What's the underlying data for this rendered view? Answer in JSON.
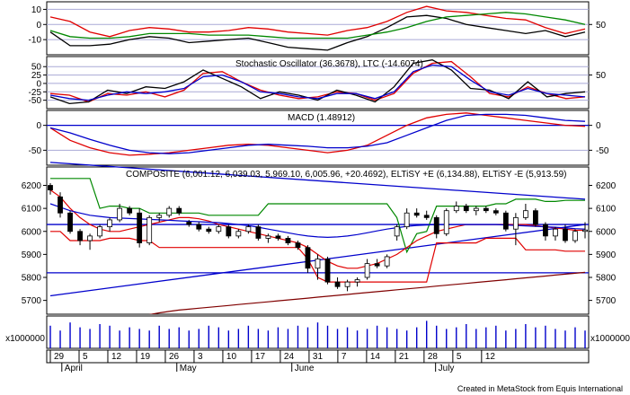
{
  "credit": "Created in MetaStock from Equis International",
  "colors": {
    "frame": "#000000",
    "grid": "#a9a9d6",
    "blue": "#0000cc",
    "red": "#e00000",
    "green": "#008800",
    "darkred": "#800000",
    "black": "#000000",
    "volume": "#0000cc"
  },
  "time_axis": {
    "month_labels": [
      "April",
      "May",
      "June",
      "July"
    ],
    "day_labels": [
      "29",
      "5",
      "12",
      "19",
      "26",
      "3",
      "10",
      "17",
      "24",
      "31",
      "7",
      "14",
      "21",
      "28",
      "5",
      "12"
    ]
  },
  "chart_data": [
    {
      "type": "line",
      "name": "top-oscillator",
      "ylim": [
        -20,
        15
      ],
      "tick_labels_left": [
        "10",
        "0",
        "-10"
      ],
      "tick_labels_right": [
        "50"
      ],
      "series": [
        {
          "color": "red",
          "values": [
            5,
            2,
            -5,
            -8,
            -4,
            -2,
            -3,
            -5,
            -5,
            -4,
            -2,
            -3,
            -5,
            -6,
            -7,
            -4,
            -2,
            2,
            8,
            12,
            9,
            8,
            6,
            4,
            3,
            -2,
            -6,
            -3
          ]
        },
        {
          "color": "black",
          "values": [
            -5,
            -14,
            -14,
            -13,
            -10,
            -8,
            -9,
            -12,
            -11,
            -10,
            -9,
            -12,
            -15,
            -16,
            -17,
            -12,
            -8,
            -2,
            5,
            6,
            4,
            0,
            -2,
            -4,
            -6,
            -4,
            -8,
            -5
          ]
        },
        {
          "color": "green",
          "values": [
            -4,
            -8,
            -9,
            -9,
            -8,
            -6,
            -6,
            -6,
            -7,
            -7,
            -7,
            -8,
            -9,
            -9,
            -9,
            -9,
            -7,
            -5,
            -2,
            2,
            5,
            6,
            7,
            8,
            7,
            5,
            3,
            0
          ]
        }
      ]
    },
    {
      "type": "line",
      "name": "stochastic",
      "title": "Stochastic Oscillator (36.3678), LTC (-14.6074)",
      "ylim": [
        -75,
        80
      ],
      "tick_labels_left": [
        "50",
        "25",
        "0",
        "-25",
        "-50"
      ],
      "tick_labels_right": [
        "50"
      ],
      "series": [
        {
          "color": "red",
          "values": [
            -30,
            -35,
            -55,
            -30,
            -35,
            -25,
            -40,
            -20,
            30,
            35,
            5,
            -20,
            -35,
            -45,
            -40,
            -25,
            -30,
            -50,
            -30,
            30,
            60,
            65,
            20,
            -30,
            -40,
            -10,
            -30,
            -45,
            -40
          ]
        },
        {
          "color": "black",
          "values": [
            -40,
            -60,
            -55,
            -20,
            -30,
            -10,
            -15,
            5,
            40,
            15,
            -10,
            -45,
            -25,
            -35,
            -50,
            -20,
            -35,
            -55,
            -10,
            60,
            70,
            40,
            -15,
            -20,
            -45,
            5,
            -40,
            -30,
            -25
          ]
        },
        {
          "color": "blue",
          "values": [
            -35,
            -45,
            -50,
            -35,
            -25,
            -30,
            -25,
            -15,
            20,
            25,
            5,
            -25,
            -30,
            -40,
            -45,
            -30,
            -30,
            -45,
            -25,
            35,
            55,
            50,
            10,
            -25,
            -35,
            -15,
            -30,
            -35,
            -40
          ]
        }
      ]
    },
    {
      "type": "line",
      "name": "macd",
      "title": "MACD (1.48912)",
      "ylim": [
        -80,
        30
      ],
      "tick_labels_left": [
        "0",
        "-50"
      ],
      "tick_labels_right": [
        "0",
        "-50"
      ],
      "series": [
        {
          "color": "red",
          "values": [
            -5,
            -30,
            -45,
            -55,
            -60,
            -58,
            -55,
            -50,
            -45,
            -40,
            -38,
            -40,
            -45,
            -50,
            -55,
            -50,
            -40,
            -20,
            0,
            15,
            22,
            25,
            20,
            15,
            10,
            5,
            0,
            -2
          ]
        },
        {
          "color": "blue",
          "values": [
            -5,
            -15,
            -28,
            -40,
            -50,
            -55,
            -57,
            -55,
            -50,
            -45,
            -40,
            -38,
            -40,
            -42,
            -45,
            -45,
            -42,
            -35,
            -20,
            -5,
            10,
            20,
            22,
            22,
            20,
            15,
            10,
            8
          ]
        }
      ]
    },
    {
      "type": "line",
      "name": "composite",
      "title": "COMPOSITE (6,001.12, 6,039.03, 5,969.10, 6,005.96, +20.4692), ELTiSY +E (6,134.88), ELTiSY -E (5,913.59)",
      "ylim": [
        5640,
        6280
      ],
      "tick_labels_left": [
        "6200",
        "6100",
        "6000",
        "5900",
        "5800",
        "5700"
      ],
      "tick_labels_right": [
        "6200",
        "6100",
        "6000",
        "5900",
        "5800",
        "5700"
      ],
      "candles": [
        {
          "o": 6200,
          "h": 6210,
          "l": 6160,
          "c": 6180
        },
        {
          "o": 6150,
          "h": 6170,
          "l": 6060,
          "c": 6080
        },
        {
          "o": 6080,
          "h": 6090,
          "l": 5990,
          "c": 6000
        },
        {
          "o": 6000,
          "h": 6010,
          "l": 5940,
          "c": 5960
        },
        {
          "o": 5960,
          "h": 5990,
          "l": 5920,
          "c": 5980
        },
        {
          "o": 5980,
          "h": 6030,
          "l": 5970,
          "c": 6020
        },
        {
          "o": 6020,
          "h": 6060,
          "l": 6000,
          "c": 6050
        },
        {
          "o": 6050,
          "h": 6120,
          "l": 6040,
          "c": 6100
        },
        {
          "o": 6100,
          "h": 6110,
          "l": 6070,
          "c": 6080
        },
        {
          "o": 6080,
          "h": 6100,
          "l": 5930,
          "c": 5950
        },
        {
          "o": 5950,
          "h": 6070,
          "l": 5940,
          "c": 6060
        },
        {
          "o": 6060,
          "h": 6080,
          "l": 6040,
          "c": 6070
        },
        {
          "o": 6070,
          "h": 6110,
          "l": 6060,
          "c": 6100
        },
        {
          "o": 6100,
          "h": 6110,
          "l": 6070,
          "c": 6080
        },
        {
          "o": 6040,
          "h": 6050,
          "l": 6020,
          "c": 6030
        },
        {
          "o": 6030,
          "h": 6040,
          "l": 6000,
          "c": 6010
        },
        {
          "o": 6010,
          "h": 6020,
          "l": 5990,
          "c": 6000
        },
        {
          "o": 6000,
          "h": 6030,
          "l": 5990,
          "c": 6020
        },
        {
          "o": 6020,
          "h": 6030,
          "l": 5970,
          "c": 5980
        },
        {
          "o": 5980,
          "h": 6010,
          "l": 5970,
          "c": 6000
        },
        {
          "o": 6000,
          "h": 6030,
          "l": 5990,
          "c": 6020
        },
        {
          "o": 6020,
          "h": 6030,
          "l": 5960,
          "c": 5970
        },
        {
          "o": 5970,
          "h": 5990,
          "l": 5950,
          "c": 5980
        },
        {
          "o": 5980,
          "h": 5990,
          "l": 5960,
          "c": 5970
        },
        {
          "o": 5970,
          "h": 5980,
          "l": 5940,
          "c": 5950
        },
        {
          "o": 5950,
          "h": 5960,
          "l": 5920,
          "c": 5930
        },
        {
          "o": 5930,
          "h": 5940,
          "l": 5820,
          "c": 5840
        },
        {
          "o": 5840,
          "h": 5900,
          "l": 5790,
          "c": 5880
        },
        {
          "o": 5880,
          "h": 5890,
          "l": 5770,
          "c": 5780
        },
        {
          "o": 5780,
          "h": 5800,
          "l": 5750,
          "c": 5760
        },
        {
          "o": 5760,
          "h": 5790,
          "l": 5740,
          "c": 5780
        },
        {
          "o": 5780,
          "h": 5800,
          "l": 5760,
          "c": 5790
        },
        {
          "o": 5800,
          "h": 5880,
          "l": 5790,
          "c": 5860
        },
        {
          "o": 5860,
          "h": 5880,
          "l": 5840,
          "c": 5850
        },
        {
          "o": 5850,
          "h": 5900,
          "l": 5840,
          "c": 5890
        },
        {
          "o": 5980,
          "h": 6030,
          "l": 5960,
          "c": 6020
        },
        {
          "o": 6020,
          "h": 6100,
          "l": 6010,
          "c": 6080
        },
        {
          "o": 6080,
          "h": 6100,
          "l": 6060,
          "c": 6070
        },
        {
          "o": 6070,
          "h": 6090,
          "l": 6050,
          "c": 6060
        },
        {
          "o": 6060,
          "h": 6070,
          "l": 5970,
          "c": 5990
        },
        {
          "o": 5990,
          "h": 6100,
          "l": 5980,
          "c": 6090
        },
        {
          "o": 6090,
          "h": 6130,
          "l": 6080,
          "c": 6110
        },
        {
          "o": 6110,
          "h": 6120,
          "l": 6080,
          "c": 6090
        },
        {
          "o": 6090,
          "h": 6110,
          "l": 6070,
          "c": 6100
        },
        {
          "o": 6100,
          "h": 6110,
          "l": 6080,
          "c": 6090
        },
        {
          "o": 6090,
          "h": 6100,
          "l": 6070,
          "c": 6080
        },
        {
          "o": 6080,
          "h": 6090,
          "l": 6000,
          "c": 6010
        },
        {
          "o": 6010,
          "h": 6080,
          "l": 5940,
          "c": 6060
        },
        {
          "o": 6060,
          "h": 6120,
          "l": 6050,
          "c": 6090
        },
        {
          "o": 6090,
          "h": 6100,
          "l": 6020,
          "c": 6030
        },
        {
          "o": 6030,
          "h": 6040,
          "l": 5960,
          "c": 5980
        },
        {
          "o": 5980,
          "h": 6020,
          "l": 5960,
          "c": 6010
        },
        {
          "o": 6010,
          "h": 6030,
          "l": 5950,
          "c": 5960
        },
        {
          "o": 5960,
          "h": 6010,
          "l": 5950,
          "c": 6000
        },
        {
          "o": 6000,
          "h": 6040,
          "l": 5970,
          "c": 6006
        }
      ],
      "lines": [
        {
          "color": "green",
          "values": [
            6230,
            6230,
            6230,
            6230,
            6230,
            6100,
            6110,
            6110,
            6100,
            6100,
            6080,
            6080,
            6080,
            6080,
            6080,
            6080,
            6070,
            6070,
            6070,
            6070,
            6070,
            6070,
            6120,
            6120,
            6120,
            6120,
            6120,
            6120,
            6120,
            6120,
            6120,
            6120,
            6120,
            6120,
            6120,
            6060,
            5910,
            5990,
            6000,
            6110,
            6110,
            6110,
            6110,
            6110,
            6110,
            6120,
            6120,
            6140,
            6140,
            6140,
            6130,
            6130,
            6135,
            6135,
            6135
          ]
        },
        {
          "color": "red",
          "values": [
            6180,
            6150,
            6100,
            6060,
            6030,
            6010,
            6000,
            6000,
            6010,
            6020,
            6030,
            6040,
            6050,
            6060,
            6060,
            6055,
            6045,
            6030,
            6020,
            6010,
            6000,
            5990,
            5980,
            5970,
            5960,
            5950,
            5930,
            5900,
            5870,
            5850,
            5840,
            5840,
            5850,
            5860,
            5880,
            5900,
            5930,
            5960,
            5980,
            6000,
            6010,
            6020,
            6030,
            6030,
            6030,
            6030,
            6030,
            6030,
            6030,
            6025,
            6020,
            6015,
            6010,
            6005,
            6005
          ]
        },
        {
          "color": "red",
          "values": [
            6000,
            6000,
            5960,
            5960,
            5960,
            5960,
            5970,
            5970,
            5970,
            5960,
            5960,
            5930,
            5930,
            5930,
            5930,
            5930,
            5930,
            5930,
            5930,
            5930,
            5930,
            5930,
            5930,
            5930,
            5930,
            5930,
            5880,
            5800,
            5780,
            5780,
            5780,
            5780,
            5780,
            5780,
            5780,
            5780,
            5780,
            5780,
            5780,
            5950,
            5950,
            5950,
            5950,
            5950,
            5970,
            5970,
            5970,
            5970,
            5920,
            5920,
            5920,
            5920,
            5914,
            5914,
            5914
          ]
        },
        {
          "color": "blue",
          "values": [
            6120,
            6105,
            6090,
            6080,
            6070,
            6065,
            6060,
            6058,
            6056,
            6054,
            6052,
            6050,
            6048,
            6046,
            6044,
            6042,
            6040,
            6038,
            6034,
            6030,
            6025,
            6018,
            6010,
            6002,
            5994,
            5986,
            5980,
            5976,
            5974,
            5976,
            5980,
            5986,
            5994,
            6002,
            6010,
            6016,
            6022,
            6026,
            6028,
            6030,
            6030,
            6030,
            6030,
            6030,
            6030,
            6030,
            6028,
            6026,
            6024,
            6022,
            6020,
            6018,
            6015,
            6012,
            6010
          ]
        },
        {
          "color": "darkred",
          "values": [
            5540,
            5550,
            5560,
            5570,
            5580,
            5590,
            5600,
            5610,
            5620,
            5630,
            5638,
            5646,
            5652,
            5658,
            5662,
            5666,
            5670,
            5674,
            5678,
            5682,
            5686,
            5690,
            5694,
            5698,
            5702,
            5706,
            5710,
            5714,
            5718,
            5722,
            5726,
            5730,
            5734,
            5738,
            5742,
            5746,
            5750,
            5754,
            5758,
            5762,
            5766,
            5770,
            5774,
            5778,
            5782,
            5786,
            5790,
            5794,
            5798,
            5802,
            5806,
            5810,
            5814,
            5818,
            5822
          ]
        }
      ],
      "trendlines": [
        {
          "color": "blue",
          "from": [
            0,
            5720
          ],
          "to": [
            54,
            6030
          ]
        },
        {
          "color": "blue",
          "from": [
            0,
            6300
          ],
          "to": [
            54,
            6140
          ]
        }
      ],
      "hlines": [
        {
          "color": "blue",
          "value": 6030
        },
        {
          "color": "blue",
          "value": 5820
        }
      ]
    },
    {
      "type": "bar",
      "name": "volume",
      "tick_labels_left": [
        "x1000000"
      ],
      "tick_labels_right": [
        "x1000000"
      ],
      "ylim": [
        0,
        100
      ],
      "values": [
        70,
        55,
        80,
        65,
        60,
        75,
        70,
        55,
        65,
        60,
        55,
        70,
        60,
        65,
        55,
        60,
        70,
        65,
        55,
        60,
        70,
        60,
        55,
        65,
        60,
        70,
        65,
        80,
        70,
        60,
        65,
        55,
        60,
        70,
        65,
        60,
        55,
        65,
        85,
        70,
        60,
        65,
        75,
        60,
        65,
        70,
        55,
        60,
        75,
        65,
        70,
        60,
        55,
        65,
        55
      ]
    }
  ]
}
